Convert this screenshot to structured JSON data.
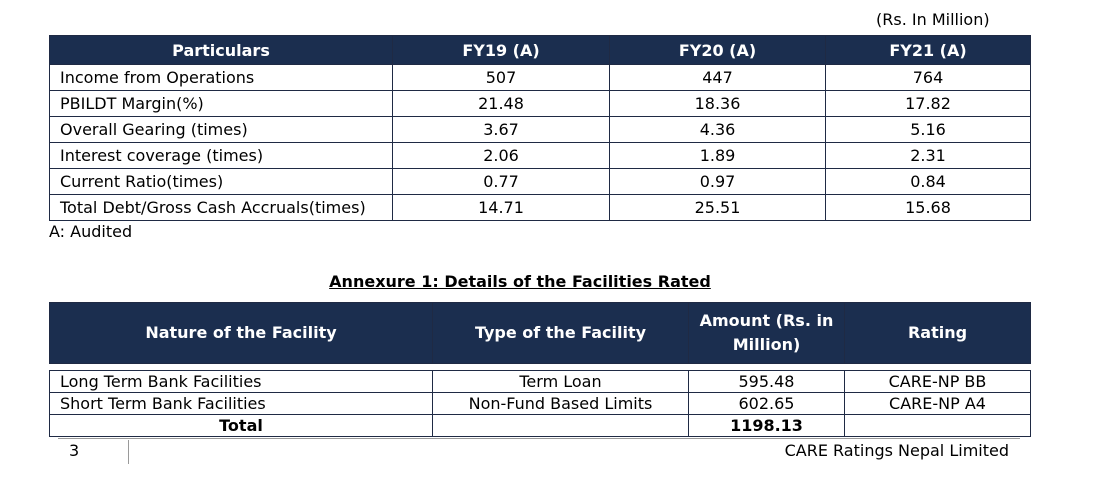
{
  "financials": {
    "unit_note": "(Rs. In Million)",
    "headers": [
      "Particulars",
      "FY19 (A)",
      "FY20 (A)",
      "FY21 (A)"
    ],
    "rows": [
      [
        "Income from Operations",
        "507",
        "447",
        "764"
      ],
      [
        "PBILDT Margin(%)",
        "21.48",
        "18.36",
        "17.82"
      ],
      [
        "Overall Gearing (times)",
        "3.67",
        "4.36",
        "5.16"
      ],
      [
        "Interest coverage (times)",
        "2.06",
        "1.89",
        "2.31"
      ],
      [
        "Current Ratio(times)",
        "0.77",
        "0.97",
        "0.84"
      ],
      [
        "Total Debt/Gross Cash Accruals(times)",
        "14.71",
        "25.51",
        "15.68"
      ]
    ],
    "footnote": "A: Audited"
  },
  "annexure": {
    "title": "Annexure 1: Details of the Facilities Rated",
    "headers": [
      "Nature of the Facility",
      "Type of the Facility",
      "Amount (Rs. in Million)",
      "Rating"
    ],
    "rows": [
      [
        "Long Term Bank Facilities",
        "Term Loan",
        "595.48",
        "CARE-NP BB"
      ],
      [
        "Short Term Bank Facilities",
        "Non-Fund Based Limits",
        "602.65",
        "CARE-NP A4"
      ]
    ],
    "total": {
      "label": "Total",
      "amount": "1198.13"
    }
  },
  "footer": {
    "page_number": "3",
    "company": "CARE Ratings Nepal Limited"
  },
  "colors": {
    "header_bg": "#1b2e4f",
    "header_text": "#ffffff"
  }
}
